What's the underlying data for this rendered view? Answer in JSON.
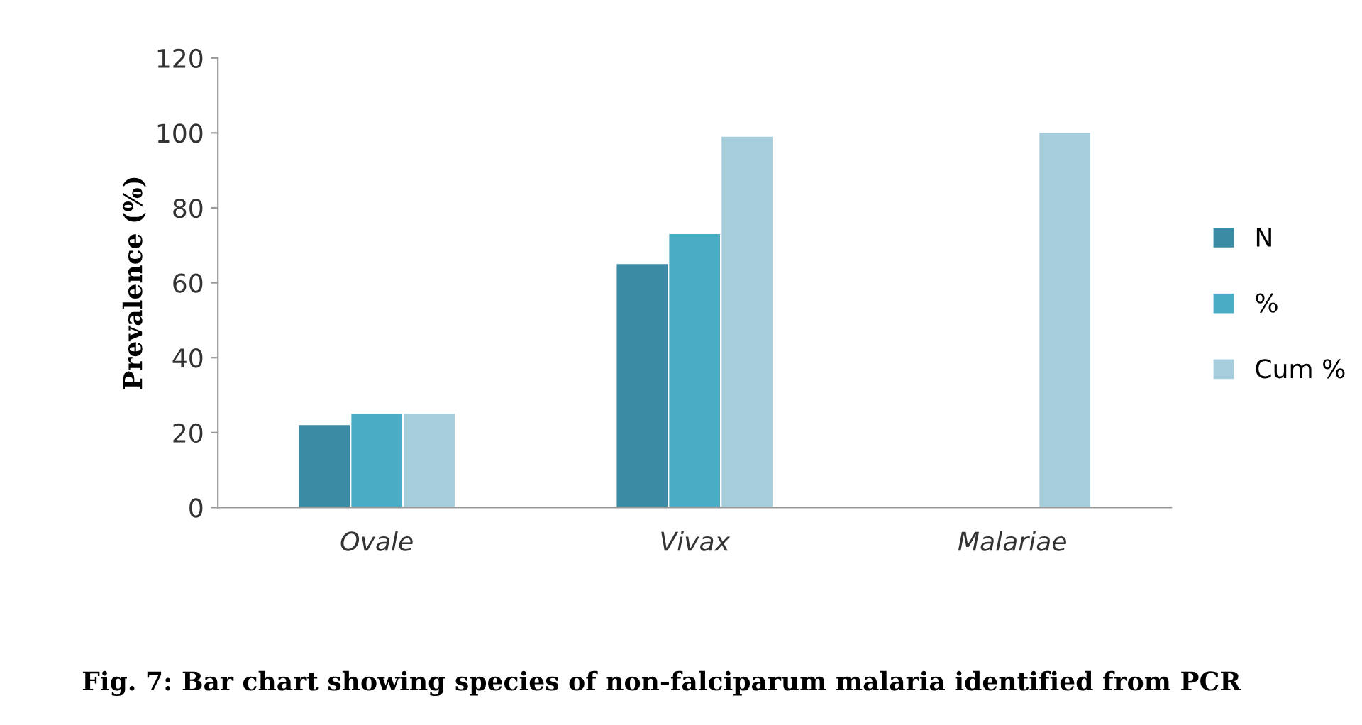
{
  "chart_data": {
    "type": "bar",
    "title": "Fig. 7: Bar chart showing species of non-falciparum malaria identified from PCR",
    "ylabel": "Prevalence (%)",
    "categories": [
      "Ovale",
      "Vivax",
      "Malariae"
    ],
    "series": [
      {
        "name": "N",
        "color": "#3b8ba5",
        "values": [
          22,
          65,
          0
        ]
      },
      {
        "name": "%",
        "color": "#4bacc6",
        "values": [
          25,
          73,
          0
        ]
      },
      {
        "name": "Cum %",
        "color": "#a5cddc",
        "values": [
          25,
          99,
          100
        ]
      }
    ],
    "ylim": [
      0,
      120
    ],
    "yticks": [
      0,
      20,
      40,
      60,
      80,
      100,
      120
    ],
    "grid": false,
    "legend": "right"
  }
}
